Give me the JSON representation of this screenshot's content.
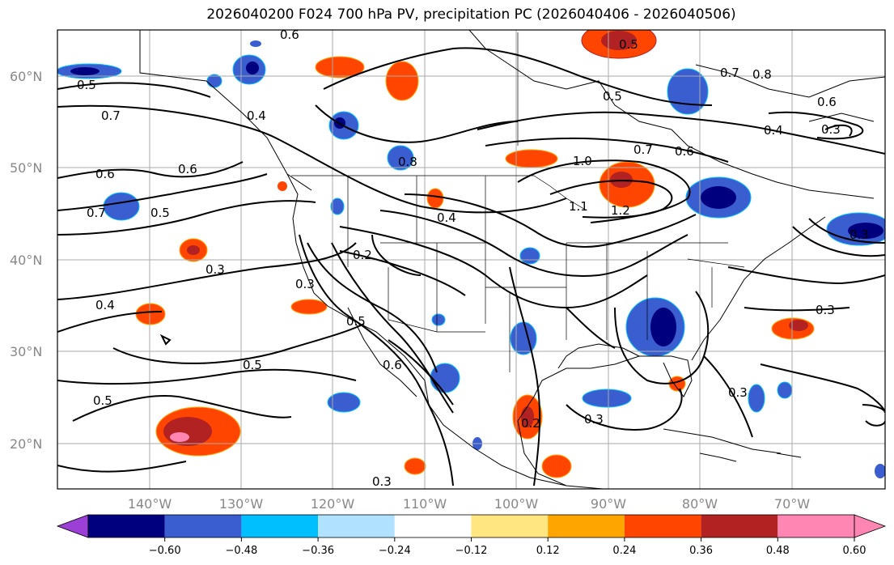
{
  "title": "2026040200 F024 700 hPa PV, precipitation PC (2026040406 - 2026040506)",
  "map": {
    "latitude_labels": [
      "60°N",
      "50°N",
      "40°N",
      "30°N",
      "20°N"
    ],
    "longitude_labels": [
      "140°W",
      "130°W",
      "120°W",
      "110°W",
      "100°W",
      "90°W",
      "80°W",
      "70°W"
    ],
    "gridlines": true,
    "coastlines": true,
    "state_borders": true
  },
  "contours": {
    "field": "700 hPa PV",
    "labels": [
      "0.6",
      "0.5",
      "0.5",
      "0.7",
      "0.5",
      "0.7",
      "0.8",
      "0.6",
      "0.4",
      "0.4",
      "0.8",
      "0.7",
      "0.6",
      "0.6",
      "0.6",
      "1.0",
      "0.7",
      "0.5",
      "0.4",
      "0.2",
      "1.1",
      "1.2",
      "0.3",
      "0.3",
      "0.4",
      "0.5",
      "0.5",
      "0.6",
      "0.5",
      "0.2",
      "0.3",
      "0.3",
      "0.3",
      "0.3",
      "0.3",
      "0.3"
    ]
  },
  "colorbar": {
    "ticks": [
      "−0.60",
      "−0.48",
      "−0.36",
      "−0.24",
      "−0.12",
      "0.12",
      "0.24",
      "0.36",
      "0.48",
      "0.60"
    ],
    "colors": [
      "#9b3fd6",
      "#00007f",
      "#3a5ecf",
      "#00bfff",
      "#b0e2ff",
      "#ffffff",
      "#ffe680",
      "#ffa500",
      "#ff4500",
      "#b22222",
      "#ff85b3",
      "#ff85b3"
    ],
    "extend": "both"
  }
}
